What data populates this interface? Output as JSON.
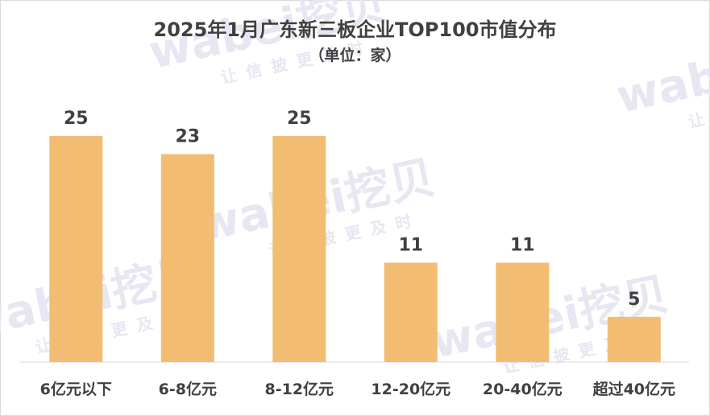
{
  "chart_data": {
    "type": "bar",
    "title": "2025年1月广东新三板企业TOP100市值分布",
    "subtitle": "（单位：家）",
    "categories": [
      "6亿元以下",
      "6-8亿元",
      "8-12亿元",
      "12-20亿元",
      "20-40亿元",
      "超过40亿元"
    ],
    "values": [
      25,
      23,
      25,
      11,
      11,
      5
    ],
    "ylim": [
      0,
      25
    ],
    "grid": false,
    "legend": "none",
    "data_labels": true,
    "bar_color": "#f2bd72",
    "label_color": "#404040",
    "axis_color": "#d9d9d9"
  },
  "watermark": {
    "logo_text": "wabei挖贝",
    "tagline": "让信披更及时"
  }
}
